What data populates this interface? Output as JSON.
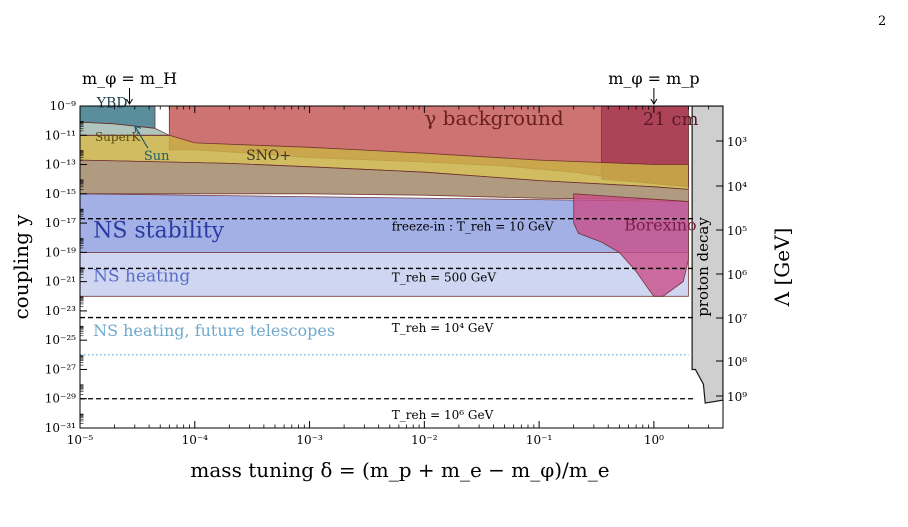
{
  "page": {
    "number": "2"
  },
  "chart_data": {
    "type": "area",
    "xlabel": "mass tuning δ = (m_p + m_e − m_φ)/m_e",
    "ylabel": "coupling y",
    "y2label": "Λ [GeV]",
    "x_scale": "log",
    "y_scale": "log",
    "xlim": [
      1e-05,
      4.0
    ],
    "ylim": [
      1e-31,
      1e-09
    ],
    "x_ticks": [
      {
        "value": 1e-05,
        "label": "10⁻⁵"
      },
      {
        "value": 0.0001,
        "label": "10⁻⁴"
      },
      {
        "value": 0.001,
        "label": "10⁻³"
      },
      {
        "value": 0.01,
        "label": "10⁻²"
      },
      {
        "value": 0.1,
        "label": "10⁻¹"
      },
      {
        "value": 1,
        "label": "10⁰"
      }
    ],
    "y_ticks": [
      {
        "value": 1e-09,
        "label": "10⁻⁹"
      },
      {
        "value": 1e-11,
        "label": "10⁻¹¹"
      },
      {
        "value": 1e-13,
        "label": "10⁻¹³"
      },
      {
        "value": 1e-15,
        "label": "10⁻¹⁵"
      },
      {
        "value": 1e-17,
        "label": "10⁻¹⁷"
      },
      {
        "value": 1e-19,
        "label": "10⁻¹⁹"
      },
      {
        "value": 1e-21,
        "label": "10⁻²¹"
      },
      {
        "value": 1e-23,
        "label": "10⁻²³"
      },
      {
        "value": 1e-25,
        "label": "10⁻²⁵"
      },
      {
        "value": 1e-27,
        "label": "10⁻²⁷"
      },
      {
        "value": 1e-29,
        "label": "10⁻²⁹"
      },
      {
        "value": 1e-31,
        "label": "10⁻³¹"
      }
    ],
    "y2_ticks": [
      {
        "y": 1e-10,
        "label": "10³"
      },
      {
        "y": 1e-14,
        "label": "10⁴"
      },
      {
        "y": 1e-18,
        "label": "10⁵"
      },
      {
        "y": 1e-22,
        "label": "10⁶"
      },
      {
        "y": 1e-26,
        "label": "10⁷"
      },
      {
        "y": 1e-30,
        "label": "10⁸"
      },
      {
        "y": 1e-34,
        "label": "10⁹"
      }
    ],
    "top_markers": [
      {
        "x": 2.7e-05,
        "label": "m_φ = m_H"
      },
      {
        "x": 1.0,
        "label": "m_φ = m_p"
      }
    ],
    "regions": [
      {
        "name": "γ background",
        "color": "#c0504d",
        "opacity": 0.8,
        "label": "γ background",
        "label_pos": [
          0.01,
          5e-11
        ],
        "label_size": 20,
        "lower": [
          [
            6e-05,
            1e-12
          ],
          [
            0.0001,
            1e-12
          ],
          [
            0.0003,
            6e-13
          ],
          [
            0.001,
            3e-13
          ],
          [
            0.01,
            1.5e-13
          ],
          [
            0.05,
            8e-14
          ],
          [
            0.2,
            3e-14
          ],
          [
            1.0,
            5e-15
          ],
          [
            2.0,
            3e-15
          ]
        ]
      },
      {
        "name": "21 cm",
        "color": "#a0334e",
        "opacity": 0.75,
        "label": "21 cm",
        "label_pos": [
          0.8,
          5e-11
        ],
        "label_size": 18,
        "polygon": [
          [
            0.35,
            1e-09
          ],
          [
            2.0,
            1e-09
          ],
          [
            2.0,
            3e-15
          ],
          [
            1.0,
            5e-15
          ],
          [
            0.35,
            1e-14
          ]
        ]
      },
      {
        "name": "YBD",
        "color": "#3d7a8c",
        "opacity": 0.85,
        "label": "YBD",
        "label_pos": [
          1.4e-05,
          8e-10
        ],
        "label_size": 14,
        "polygon": [
          [
            1e-05,
            1e-09
          ],
          [
            4.5e-05,
            1e-09
          ],
          [
            4.5e-05,
            3e-11
          ],
          [
            2e-05,
            6e-11
          ],
          [
            1e-05,
            8e-11
          ]
        ]
      },
      {
        "name": "SuperK",
        "color": "#c9b045",
        "opacity": 0.85,
        "label": "SuperK",
        "label_pos": [
          1.35e-05,
          4e-12
        ],
        "label_size": 12,
        "lower": [
          [
            1e-05,
            2e-13
          ],
          [
            0.0002,
            1.2e-13
          ],
          [
            0.001,
            7e-14
          ],
          [
            0.01,
            3e-14
          ],
          [
            0.1,
            8e-15
          ],
          [
            1.0,
            3e-15
          ],
          [
            2.0,
            2e-15
          ]
        ],
        "upper": [
          [
            1e-05,
            1e-11
          ],
          [
            6e-05,
            1e-11
          ],
          [
            0.0001,
            3e-12
          ],
          [
            0.001,
            1.5e-12
          ],
          [
            0.01,
            6e-13
          ],
          [
            0.1,
            2e-13
          ],
          [
            1.0,
            1e-13
          ],
          [
            2.0,
            1e-13
          ]
        ]
      },
      {
        "name": "Sun",
        "color": "#4f7f6e",
        "opacity": 0.45,
        "label": "Sun",
        "label_pos": [
          3.6e-05,
          2e-13
        ],
        "label_size": 13,
        "polygon": [
          [
            1e-05,
            8e-11
          ],
          [
            2e-05,
            6e-11
          ],
          [
            4.5e-05,
            3e-11
          ],
          [
            6e-05,
            1e-11
          ],
          [
            1e-05,
            1e-11
          ]
        ]
      },
      {
        "name": "SNO+",
        "color": "#a89072",
        "opacity": 0.9,
        "label": "SNO+",
        "label_pos": [
          0.00028,
          2e-13
        ],
        "label_size": 14,
        "lower": [
          [
            1e-05,
            1e-15
          ],
          [
            0.001,
            1e-15
          ],
          [
            0.01,
            8e-16
          ],
          [
            0.1,
            5e-16
          ],
          [
            1.0,
            4e-16
          ],
          [
            2.0,
            3e-16
          ]
        ],
        "upper": [
          [
            1e-05,
            2e-13
          ],
          [
            0.0002,
            1.2e-13
          ],
          [
            0.001,
            7e-14
          ],
          [
            0.01,
            3e-14
          ],
          [
            0.1,
            8e-15
          ],
          [
            1.0,
            3e-15
          ],
          [
            2.0,
            2e-15
          ]
        ]
      },
      {
        "name": "NS stability",
        "color": "#7b8fdc",
        "opacity": 0.7,
        "label": "NS stability",
        "label_pos": [
          1.3e-05,
          1e-18
        ],
        "label_size": 22,
        "polygon": [
          [
            1e-05,
            1e-15
          ],
          [
            2.0,
            3e-16
          ],
          [
            2.0,
            1e-19
          ],
          [
            1e-05,
            1e-19
          ]
        ]
      },
      {
        "name": "NS heating",
        "color": "#a7b4e8",
        "opacity": 0.55,
        "label": "NS heating",
        "label_pos": [
          1.3e-05,
          1e-21
        ],
        "label_size": 17,
        "polygon": [
          [
            1e-05,
            1e-19
          ],
          [
            2.0,
            1e-19
          ],
          [
            2.0,
            1e-22
          ],
          [
            1e-05,
            1e-22
          ]
        ]
      },
      {
        "name": "Borexino",
        "color": "#c94f8a",
        "opacity": 0.8,
        "label": "Borexino",
        "label_pos": [
          0.55,
          3e-18
        ],
        "label_size": 16,
        "polygon": [
          [
            0.2,
            1e-15
          ],
          [
            2.0,
            3e-16
          ],
          [
            2.0,
            3e-20
          ],
          [
            1.8,
            1e-21
          ],
          [
            1.2,
            1e-22
          ],
          [
            1.0,
            1e-22
          ],
          [
            0.9,
            3e-22
          ],
          [
            0.7,
            5e-21
          ],
          [
            0.5,
            1e-19
          ],
          [
            0.35,
            5e-19
          ],
          [
            0.22,
            2e-18
          ],
          [
            0.2,
            1e-17
          ]
        ]
      },
      {
        "name": "proton decay",
        "color": "#cfcfcf",
        "opacity": 1.0,
        "label": "proton decay",
        "label_pos": [
          2.95,
          1e-20
        ],
        "label_size": 15,
        "polygon": [
          [
            2.15,
            1e-09
          ],
          [
            4.0,
            1e-09
          ],
          [
            4.0,
            8e-30
          ],
          [
            2.8,
            5e-30
          ],
          [
            2.7,
            1e-28
          ],
          [
            2.3,
            1e-27
          ],
          [
            2.15,
            1e-27
          ]
        ]
      }
    ],
    "lines": [
      {
        "name": "freeze-in : T_reh = 10 GeV",
        "y": 2e-17,
        "style": "dashed",
        "color": "#000000",
        "label": "freeze-in : T_reh = 10 GeV",
        "label_pos": [
          0.0052,
          3e-18
        ]
      },
      {
        "name": "T_reh = 500 GeV",
        "y": 8e-21,
        "style": "dashed",
        "color": "#000000",
        "label": "T_reh = 500 GeV",
        "label_pos": [
          0.0052,
          1e-21
        ]
      },
      {
        "name": "T_reh = 10^4 GeV",
        "y": 3.5e-24,
        "style": "dashed",
        "color": "#000000",
        "label": "T_reh = 10⁴ GeV",
        "label_pos": [
          0.0052,
          3.5e-25
        ]
      },
      {
        "name": "NS heating, future telescopes",
        "y": 1e-26,
        "style": "dotted",
        "color": "#4fa3c9",
        "label": "NS heating, future telescopes",
        "label_pos": [
          1.3e-05,
          2e-25
        ]
      },
      {
        "name": "T_reh = 10^6 GeV",
        "y": 1e-29,
        "style": "dashed",
        "color": "#000000",
        "label": "T_reh = 10⁶ GeV",
        "label_pos": [
          0.0052,
          4e-31
        ]
      }
    ]
  }
}
